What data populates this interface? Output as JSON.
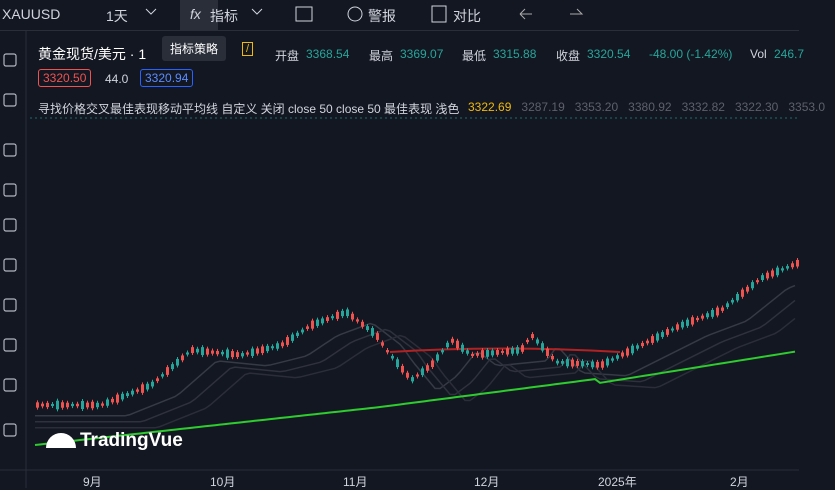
{
  "toolbar": {
    "symbol": "XAUUSD",
    "interval": "1天",
    "indicators": "指标",
    "alert": "警报",
    "compare": "对比",
    "tooltip": "指标策略"
  },
  "legend": {
    "title": "黄金现货/美元 · 1",
    "open_label": "开盘",
    "open": "3368.54",
    "high_label": "最高",
    "high": "3369.07",
    "low_label": "最低",
    "low": "3315.88",
    "close_label": "收盘",
    "close": "3320.54",
    "change": "-48.00 (-1.42%)",
    "vol_label": "Vol",
    "vol": "246.7",
    "bid": "3320.50",
    "spread": "44.0",
    "ask": "3320.94"
  },
  "indicator": {
    "name": "寻找价格交叉最佳表现移动平均线 自定义 关闭 close 50 close 50 最佳表现 浅色",
    "values": [
      "3322.69",
      "3287.19",
      "3353.20",
      "3380.92",
      "3332.82",
      "3322.30",
      "3353.0"
    ]
  },
  "x_labels": [
    "9月",
    "10月",
    "11月",
    "12月",
    "2025年",
    "2月"
  ],
  "logo": "TradingVue"
}
